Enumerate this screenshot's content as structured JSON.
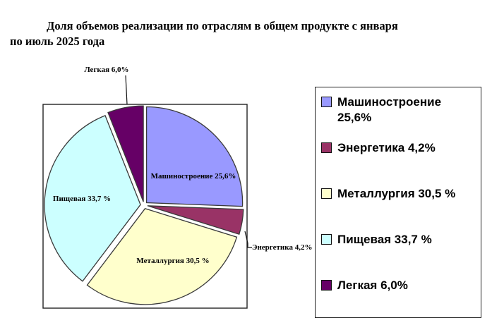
{
  "title": {
    "lines": [
      "Доля объемов реализации по отраслям в общем продукте с января",
      "по июль 2025 года"
    ],
    "full": "Доля объемов реализации по отраслям в общем продукте с января по июль 2025 года"
  },
  "chart_data": {
    "type": "pie",
    "title": "Доля объемов реализации по отраслям в общем продукте с января по июль 2025 года",
    "unit": "%",
    "direction": "clockwise",
    "start_angle_deg": 0,
    "exploded": true,
    "legend_position": "right",
    "categories": [
      "Машиностроение",
      "Энергетика",
      "Металлургия",
      "Пищевая",
      "Легкая"
    ],
    "values": [
      25.6,
      4.2,
      30.5,
      33.7,
      6.0
    ],
    "series": [
      {
        "label": "Машиностроение",
        "value": 25.6,
        "display": "Машиностроение 25,6%",
        "color": "#9999FF",
        "label_placement": "inside"
      },
      {
        "label": "Энергетика",
        "value": 4.2,
        "display": "Энергетика 4,2%",
        "color": "#993366",
        "label_placement": "outside-right"
      },
      {
        "label": "Металлургия",
        "value": 30.5,
        "display": "Металлургия 30,5 %",
        "color": "#FFFFCC",
        "label_placement": "inside"
      },
      {
        "label": "Пищевая",
        "value": 33.7,
        "display": "Пищевая 33,7 %",
        "color": "#CCFFFF",
        "label_placement": "inside"
      },
      {
        "label": "Легкая",
        "value": 6.0,
        "display": "Легкая 6,0%",
        "color": "#660066",
        "label_placement": "outside-top"
      }
    ]
  },
  "legend": {
    "items": [
      {
        "label": "Машиностроение 25,6%",
        "color": "#9999FF"
      },
      {
        "label": "Энергетика 4,2%",
        "color": "#993366"
      },
      {
        "label": "Металлургия 30,5 %",
        "color": "#FFFFCC"
      },
      {
        "label": "Пищевая 33,7 %",
        "color": "#CCFFFF"
      },
      {
        "label": "Легкая 6,0%",
        "color": "#660066"
      }
    ]
  }
}
